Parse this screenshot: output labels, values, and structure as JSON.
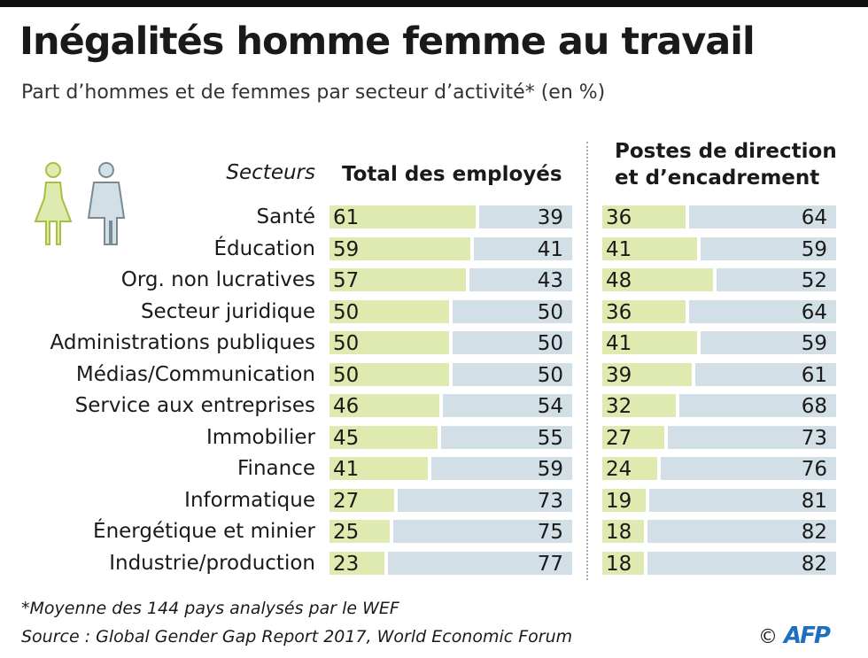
{
  "title": "Inégalités homme femme au travail",
  "subtitle": "Part d’hommes et de femmes par secteur d’activité* (en %)",
  "footnote": "*Moyenne des 144 pays analysés par le WEF",
  "source": "Source : Global Gender Gap Report 2017, World Economic Forum",
  "credit": {
    "copyright": "©",
    "brand": "AFP"
  },
  "colors": {
    "women": "#dfeab0",
    "men": "#d3dfe6"
  },
  "chart_data": {
    "type": "bar",
    "stacked": true,
    "sectors_label": "Secteurs",
    "categories": [
      "Santé",
      "Éducation",
      "Org. non lucratives",
      "Secteur juridique",
      "Administrations publiques",
      "Médias/Communication",
      "Service aux entreprises",
      "Immobilier",
      "Finance",
      "Informatique",
      "Énergétique et minier",
      "Industrie/production"
    ],
    "panels": [
      {
        "title": "Total des employés",
        "series": [
          {
            "name": "Femmes",
            "values": [
              61,
              59,
              57,
              50,
              50,
              50,
              46,
              45,
              41,
              27,
              25,
              23
            ]
          },
          {
            "name": "Hommes",
            "values": [
              39,
              41,
              43,
              50,
              50,
              50,
              54,
              55,
              59,
              73,
              75,
              77
            ]
          }
        ]
      },
      {
        "title_line1": "Postes de direction",
        "title_line2": "et d’encadrement",
        "series": [
          {
            "name": "Femmes",
            "values": [
              36,
              41,
              48,
              36,
              41,
              39,
              32,
              27,
              24,
              19,
              18,
              18
            ]
          },
          {
            "name": "Hommes",
            "values": [
              64,
              59,
              52,
              64,
              59,
              61,
              68,
              73,
              76,
              81,
              82,
              82
            ]
          }
        ]
      }
    ]
  }
}
